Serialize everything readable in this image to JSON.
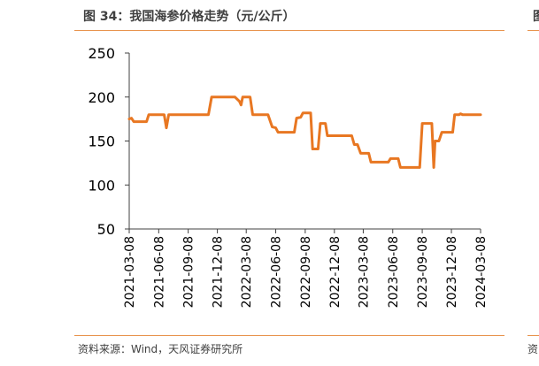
{
  "header": {
    "title": "图 34：我国海参价格走势（元/公斤）",
    "right_title_fragment": "图"
  },
  "footer": {
    "source": "资料来源：Wind，天风证券研究所",
    "right_source_fragment": "资"
  },
  "colors": {
    "series": "#e87722",
    "rule": "#e8944e",
    "axis": "#404040"
  },
  "chart_data": {
    "type": "line",
    "title": "",
    "xlabel": "",
    "ylabel": "",
    "ylim": [
      50,
      250
    ],
    "yticks": [
      50,
      100,
      150,
      200,
      250
    ],
    "xlim": [
      "2021-03-08",
      "2024-03-08"
    ],
    "xticks": [
      "2021-03-08",
      "2021-06-08",
      "2021-09-08",
      "2021-12-08",
      "2022-03-08",
      "2022-06-08",
      "2022-09-08",
      "2022-12-08",
      "2023-03-08",
      "2023-06-08",
      "2023-09-08",
      "2023-12-08",
      "2024-03-08"
    ],
    "grid": false,
    "legend": "none",
    "series": [
      {
        "name": "",
        "points": [
          [
            "2021-03-08",
            175
          ],
          [
            "2021-03-15",
            176
          ],
          [
            "2021-03-22",
            172
          ],
          [
            "2021-04-15",
            172
          ],
          [
            "2021-05-01",
            172
          ],
          [
            "2021-05-08",
            180
          ],
          [
            "2021-06-25",
            180
          ],
          [
            "2021-07-02",
            165
          ],
          [
            "2021-07-09",
            180
          ],
          [
            "2021-11-10",
            180
          ],
          [
            "2021-11-20",
            200
          ],
          [
            "2022-02-01",
            200
          ],
          [
            "2022-02-15",
            195
          ],
          [
            "2022-02-20",
            191
          ],
          [
            "2022-02-25",
            200
          ],
          [
            "2022-03-20",
            200
          ],
          [
            "2022-03-28",
            180
          ],
          [
            "2022-05-15",
            180
          ],
          [
            "2022-05-28",
            166
          ],
          [
            "2022-06-08",
            165
          ],
          [
            "2022-06-15",
            160
          ],
          [
            "2022-08-05",
            160
          ],
          [
            "2022-08-12",
            176
          ],
          [
            "2022-08-25",
            177
          ],
          [
            "2022-09-01",
            182
          ],
          [
            "2022-09-25",
            182
          ],
          [
            "2022-10-01",
            141
          ],
          [
            "2022-10-18",
            141
          ],
          [
            "2022-10-25",
            170
          ],
          [
            "2022-11-10",
            170
          ],
          [
            "2022-11-16",
            156
          ],
          [
            "2023-01-31",
            156
          ],
          [
            "2023-02-08",
            146
          ],
          [
            "2023-02-18",
            146
          ],
          [
            "2023-02-28",
            136
          ],
          [
            "2023-03-25",
            136
          ],
          [
            "2023-04-01",
            126
          ],
          [
            "2023-05-25",
            126
          ],
          [
            "2023-06-01",
            130
          ],
          [
            "2023-06-25",
            130
          ],
          [
            "2023-07-02",
            120
          ],
          [
            "2023-08-31",
            120
          ],
          [
            "2023-09-08",
            170
          ],
          [
            "2023-10-08",
            170
          ],
          [
            "2023-10-14",
            120
          ],
          [
            "2023-10-18",
            150
          ],
          [
            "2023-10-30",
            150
          ],
          [
            "2023-11-08",
            160
          ],
          [
            "2023-12-12",
            160
          ],
          [
            "2023-12-18",
            180
          ],
          [
            "2024-01-01",
            180
          ],
          [
            "2024-01-05",
            181
          ],
          [
            "2024-01-12",
            180
          ],
          [
            "2024-03-08",
            180
          ]
        ]
      }
    ]
  }
}
